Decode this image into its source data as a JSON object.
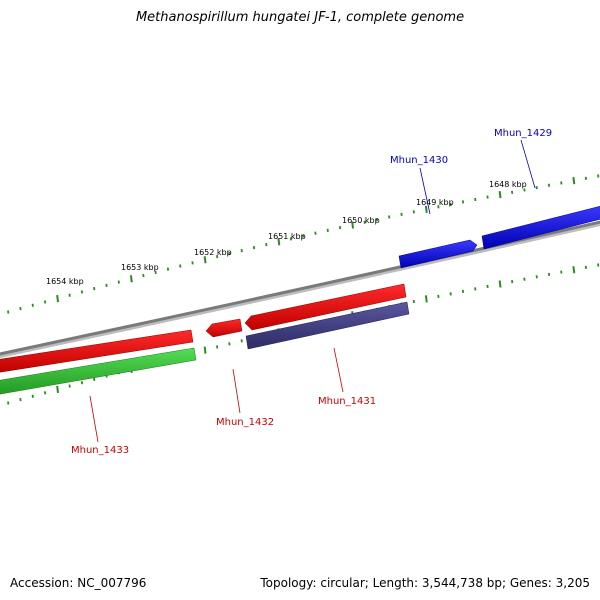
{
  "title": "Methanospirillum hungatei JF-1, complete genome",
  "footer": {
    "accession": "Accession: NC_007796",
    "summary": "Topology: circular; Length: 3,544,738 bp; Genes: 3,205"
  },
  "colors": {
    "backbone": "#7a7a7a",
    "tick": "#2e8b22",
    "forward_gene": "#0000e0",
    "reverse_gene": "#e00000",
    "rna_or_feature": "#33bb33",
    "purple_feature": "#3d3a7a",
    "label_blue": "#0000cc",
    "label_red": "#cc0000"
  },
  "scale": {
    "labels": [
      "1654 kbp",
      "1653 kbp",
      "1652 kbp",
      "1651 kbp",
      "1650 kbp",
      "1649 kbp",
      "1648 kbp"
    ]
  },
  "genes": {
    "forward": [
      "Mhun_1430",
      "Mhun_1429"
    ],
    "reverse": [
      "Mhun_1433",
      "Mhun_1432",
      "Mhun_1431"
    ]
  }
}
